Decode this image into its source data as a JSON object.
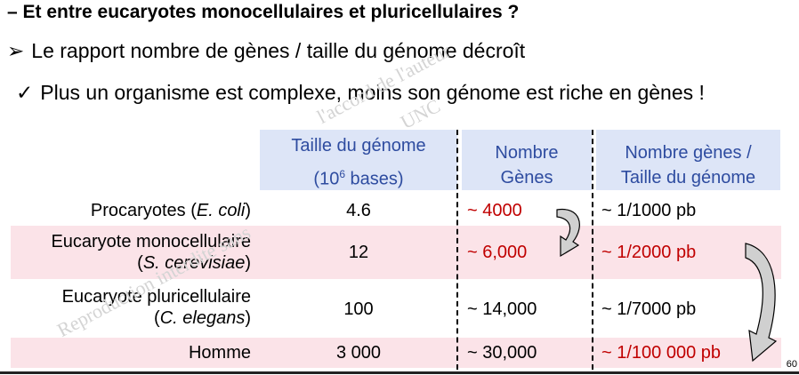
{
  "slide": {
    "title": "– Et entre eucaryotes monocellulaires et pluricellulaires ?",
    "bullet1_marker": "➢",
    "bullet1": "Le rapport nombre de gènes / taille du génome décroît",
    "bullet2_marker": "✓",
    "bullet2": "Plus un organisme est complexe, moins son génome est riche en gènes !",
    "page_number": "60",
    "watermark": {
      "line1": "l'accord de l'auteur",
      "line2": "UNC",
      "line3": "Reproduction interdite sans"
    }
  },
  "table": {
    "headers": {
      "size_line1": "Taille du génome",
      "size_line2_pre": "(10",
      "size_line2_sup": "6",
      "size_line2_post": " bases)",
      "genes_line1": "Nombre",
      "genes_line2": "Gènes",
      "ratio_line1": "Nombre gènes /",
      "ratio_line2": "Taille du génome"
    },
    "rows": [
      {
        "org_pre": "Procaryotes (",
        "org_italic": "E. coli",
        "org_post": ")",
        "size": "4.6",
        "genes": "~ 4000",
        "ratio": "~ 1/1000 pb"
      },
      {
        "org_line1": "Eucaryote monocellulaire",
        "org_pre": "(",
        "org_italic": "S. cerevisiae",
        "org_post": ")",
        "size": "12",
        "genes": "~ 6,000",
        "ratio": "~ 1/2000 pb"
      },
      {
        "org_line1": "Eucaryote pluricellulaire",
        "org_pre": "(",
        "org_italic": "C. elegans",
        "org_post": ")",
        "size": "100",
        "genes": "~ 14,000",
        "ratio": "~ 1/7000 pb"
      },
      {
        "org": "Homme",
        "size": "3 000",
        "genes": "~ 30,000",
        "ratio": "~ 1/100 000 pb"
      }
    ]
  },
  "colors": {
    "header_bg": "#dde5f7",
    "header_text": "#2e4ca0",
    "highlight_row_bg": "#fbe3e8",
    "highlight_text": "#c00000",
    "arrow_fill": "#d0d0d0"
  }
}
